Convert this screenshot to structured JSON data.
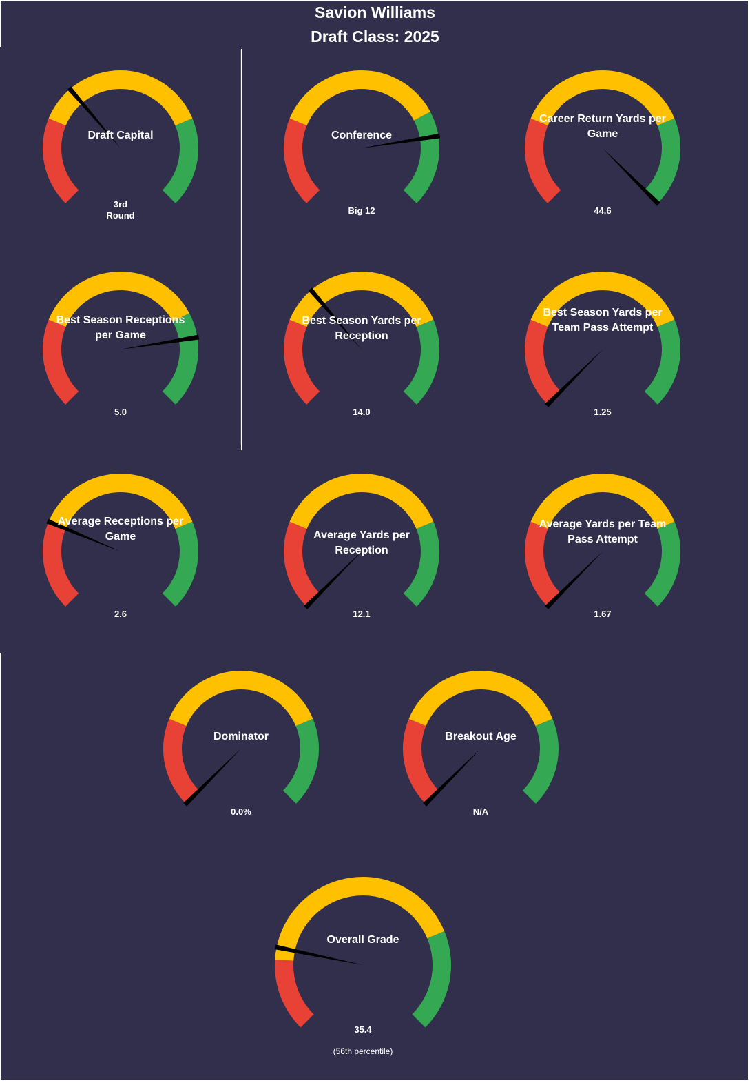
{
  "title": "Savion Williams",
  "subtitle": "Draft Class: 2025",
  "colors": {
    "background": "#312f4c",
    "red": "#e84236",
    "yellow": "#ffc000",
    "green": "#34a853",
    "needle": "#000000",
    "text": "#ffffff"
  },
  "chart_data": {
    "type": "gauge",
    "zone_colors": [
      "red",
      "yellow",
      "green"
    ],
    "gauges": [
      {
        "label": "Draft Capital",
        "value_text": "3rd\nRound",
        "needle_percent": 35,
        "zones": [
          0,
          25,
          75,
          100
        ]
      },
      {
        "label": "Conference",
        "value_text": "Big 12",
        "needle_percent": 80,
        "zones": [
          0,
          25,
          73,
          100
        ]
      },
      {
        "label": "Career Return Yards per Game",
        "value_text": "44.6",
        "needle_percent": 100,
        "zones": [
          0,
          25,
          75,
          100
        ]
      },
      {
        "label": "Best Season Receptions per Game",
        "value_text": "5.0",
        "needle_percent": 80,
        "zones": [
          0,
          25,
          73,
          100
        ]
      },
      {
        "label": "Best Season Yards per Reception",
        "value_text": "14.0",
        "needle_percent": 35,
        "zones": [
          0,
          25,
          75,
          100
        ]
      },
      {
        "label": "Best Season Yards per Team Pass Attempt",
        "value_text": "1.25",
        "needle_percent": 0,
        "zones": [
          0,
          25,
          75,
          100
        ]
      },
      {
        "label": "Average Receptions per Game",
        "value_text": "2.6",
        "needle_percent": 25,
        "zones": [
          0,
          25,
          75,
          100
        ]
      },
      {
        "label": "Average Yards per Reception",
        "value_text": "12.1",
        "needle_percent": 0,
        "zones": [
          0,
          25,
          75,
          100
        ]
      },
      {
        "label": "Average Yards per Team Pass Attempt",
        "value_text": "1.67",
        "needle_percent": 0,
        "zones": [
          0,
          25,
          75,
          100
        ]
      },
      {
        "label": "Dominator",
        "value_text": "0.0%",
        "needle_percent": 0,
        "zones": [
          0,
          25,
          75,
          100
        ]
      },
      {
        "label": "Breakout Age",
        "value_text": "N/A",
        "needle_percent": 0,
        "zones": [
          0,
          25,
          75,
          100
        ]
      },
      {
        "label": "Overall Grade",
        "value_text": "35.4",
        "note": "(56th  percentile)",
        "needle_percent": 21,
        "zones": [
          0,
          18,
          75,
          100
        ]
      }
    ]
  }
}
